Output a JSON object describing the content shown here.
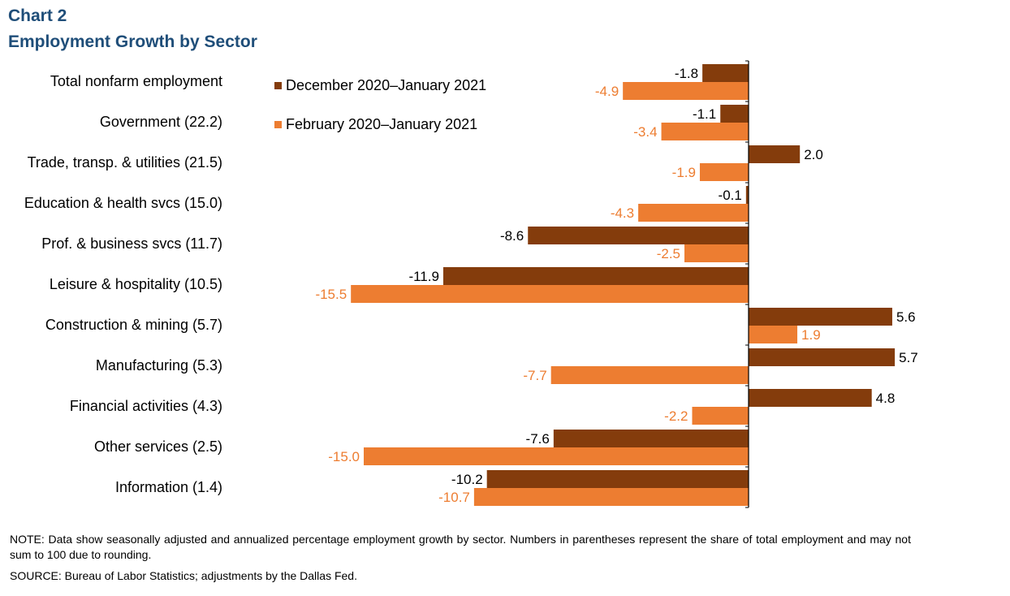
{
  "chart_data": {
    "type": "bar",
    "orientation": "horizontal",
    "title": "Chart 2",
    "subtitle": "Employment  Growth by Sector",
    "categories": [
      "Total nonfarm employment",
      "Government (22.2)",
      "Trade, transp. & utilities (21.5)",
      "Education & health svcs (15.0)",
      "Prof. & business svcs (11.7)",
      "Leisure & hospitality (10.5)",
      "Construction & mining (5.7)",
      "Manufacturing (5.3)",
      "Financial activities (4.3)",
      "Other services (2.5)",
      "Information (1.4)"
    ],
    "series": [
      {
        "name": "December 2020–January 2021",
        "color": "#843c0c",
        "values": [
          -1.8,
          -1.1,
          2.0,
          -0.1,
          -8.6,
          -11.9,
          5.6,
          5.7,
          4.8,
          -7.6,
          -10.2
        ]
      },
      {
        "name": "February 2020–January 2021",
        "color": "#ed7d31",
        "values": [
          -4.9,
          -3.4,
          -1.9,
          -4.3,
          -2.5,
          -15.5,
          1.9,
          -7.7,
          -2.2,
          -15.0,
          -10.7
        ]
      }
    ],
    "value_labels": true,
    "grid": false,
    "legend_position": "top-center"
  },
  "footer": {
    "note": "NOTE:  Data show seasonally adjusted and annualized percentage employment growth by sector. Numbers in parentheses represent the share of total employment and may not sum to 100 due to rounding.",
    "source": "SOURCE:  Bureau of Labor Statistics; adjustments  by the Dallas Fed."
  }
}
